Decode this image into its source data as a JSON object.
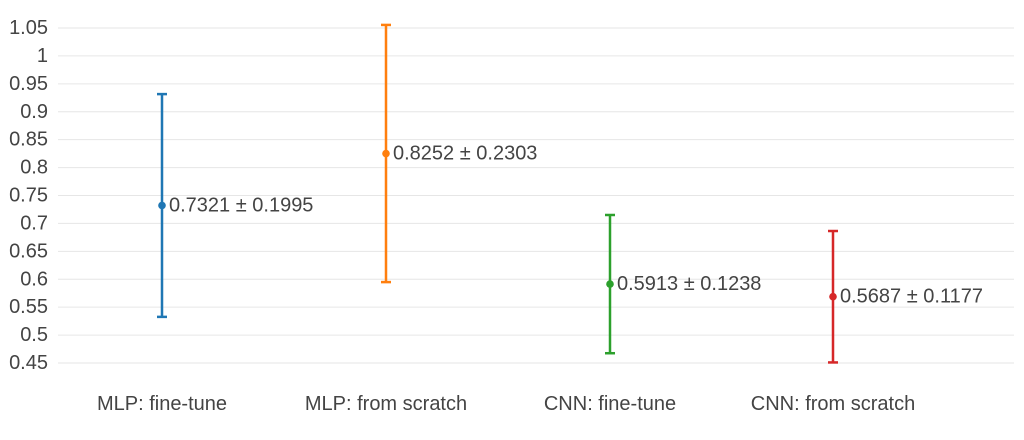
{
  "chart_data": {
    "type": "scatter",
    "title": "",
    "xlabel": "",
    "ylabel": "",
    "grid": true,
    "legend": "none",
    "ylim": [
      0.44,
      1.06
    ],
    "yticks": [
      0.45,
      0.5,
      0.55,
      0.6,
      0.65,
      0.7,
      0.75,
      0.8,
      0.85,
      0.9,
      0.95,
      1,
      1.05
    ],
    "ytick_labels": [
      "0.45",
      "0.5",
      "0.55",
      "0.6",
      "0.65",
      "0.7",
      "0.75",
      "0.8",
      "0.85",
      "0.9",
      "0.95",
      "1",
      "1.05"
    ],
    "categories": [
      "MLP: fine-tune",
      "MLP: from scratch",
      "CNN: fine-tune",
      "CNN: from scratch"
    ],
    "points": [
      {
        "category": "MLP: fine-tune",
        "mean": 0.7321,
        "error": 0.1995,
        "label": "0.7321 ± 0.1995",
        "color": "#1f77b4"
      },
      {
        "category": "MLP: from scratch",
        "mean": 0.8252,
        "error": 0.2303,
        "label": "0.8252 ± 0.2303",
        "color": "#ff7f0e"
      },
      {
        "category": "CNN: fine-tune",
        "mean": 0.5913,
        "error": 0.1238,
        "label": "0.5913 ± 0.1238",
        "color": "#2ca02c"
      },
      {
        "category": "CNN: from scratch",
        "mean": 0.5687,
        "error": 0.1177,
        "label": "0.5687 ± 0.1177",
        "color": "#d62728"
      }
    ]
  }
}
